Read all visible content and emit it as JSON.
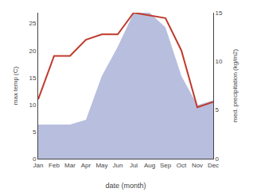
{
  "chart_data": {
    "type": "line",
    "categories": [
      "Jan",
      "Feb",
      "Mar",
      "Apr",
      "May",
      "Jun",
      "Jul",
      "Aug",
      "Sep",
      "Oct",
      "Nov",
      "Dec"
    ],
    "series": [
      {
        "type": "area",
        "axis": "y2",
        "color": "#b8bede",
        "values": [
          3.5,
          3.5,
          3.5,
          4,
          8.5,
          11.5,
          15,
          15,
          13.5,
          8.5,
          5.5,
          6
        ]
      },
      {
        "type": "line",
        "color": "#c0392b",
        "values": [
          11,
          19,
          19,
          22,
          23,
          23,
          27,
          26.5,
          26,
          20,
          9.5,
          10.5
        ]
      }
    ],
    "xlabel": "date (month)",
    "ylabel": "max temp (C)",
    "y2label": "med. precipitation (kg/m2)",
    "ylim": [
      0,
      27
    ],
    "yticks": [
      0,
      5,
      10,
      15,
      20,
      25
    ],
    "y2lim": [
      0,
      15
    ],
    "y2ticks": [
      0,
      5,
      10,
      15
    ],
    "grid": false
  }
}
